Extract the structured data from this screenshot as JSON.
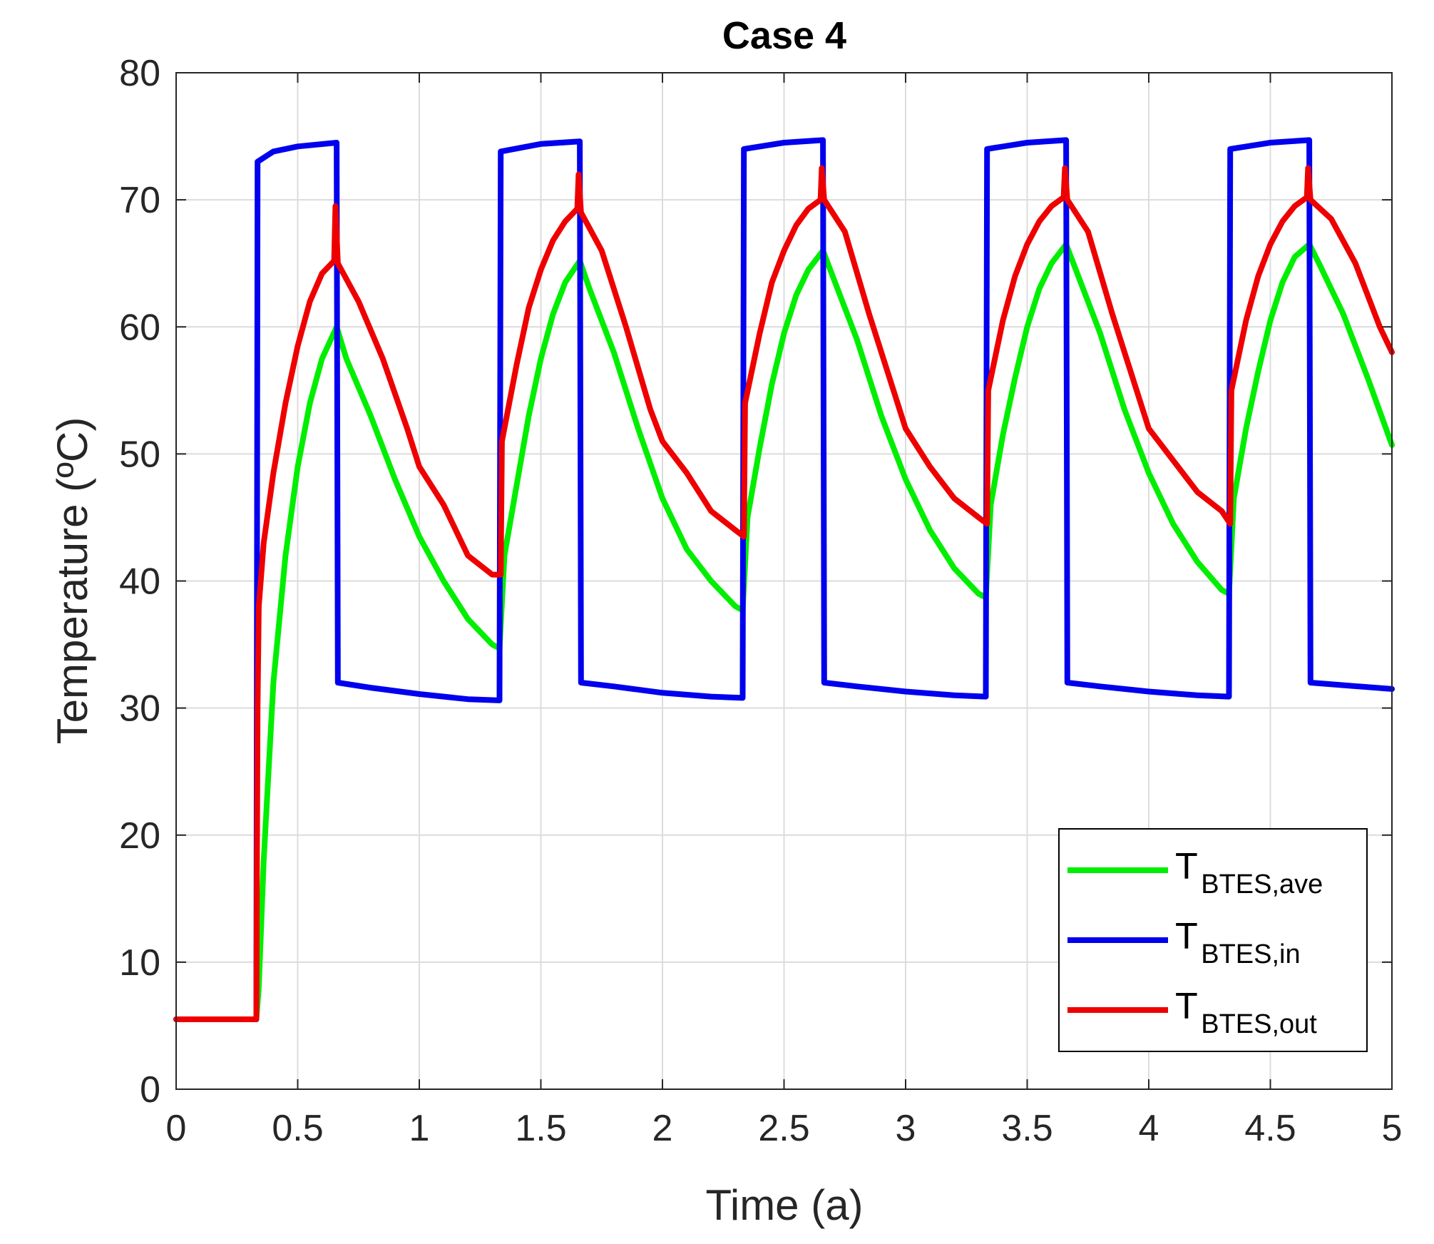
{
  "chart_data": {
    "type": "line",
    "title": "Case 4",
    "xlabel": "Time (a)",
    "ylabel": "Temperature (ºC)",
    "xlim": [
      0,
      5
    ],
    "ylim": [
      0,
      80
    ],
    "x_ticks": [
      0,
      0.5,
      1,
      1.5,
      2,
      2.5,
      3,
      3.5,
      4,
      4.5,
      5
    ],
    "x_tick_labels": [
      "0",
      "0.5",
      "1",
      "1.5",
      "2",
      "2.5",
      "3",
      "3.5",
      "4",
      "4.5",
      "5"
    ],
    "y_ticks": [
      0,
      10,
      20,
      30,
      40,
      50,
      60,
      70,
      80
    ],
    "y_tick_labels": [
      "0",
      "10",
      "20",
      "30",
      "40",
      "50",
      "60",
      "70",
      "80"
    ],
    "grid": true,
    "legend_position": "lower-right",
    "series": [
      {
        "name": "T_BTES,ave",
        "legend_main": "T",
        "legend_sub": "BTES,ave",
        "color": "#00ee00",
        "points": [
          [
            0,
            5.5
          ],
          [
            0.33,
            5.5
          ],
          [
            0.34,
            8
          ],
          [
            0.36,
            18
          ],
          [
            0.4,
            32
          ],
          [
            0.45,
            42
          ],
          [
            0.5,
            49
          ],
          [
            0.55,
            54
          ],
          [
            0.6,
            57.5
          ],
          [
            0.66,
            60
          ],
          [
            0.7,
            57.5
          ],
          [
            0.8,
            53
          ],
          [
            0.9,
            48
          ],
          [
            1.0,
            43.5
          ],
          [
            1.1,
            40
          ],
          [
            1.2,
            37
          ],
          [
            1.3,
            35
          ],
          [
            1.33,
            34.7
          ],
          [
            1.35,
            42
          ],
          [
            1.4,
            47.5
          ],
          [
            1.45,
            53
          ],
          [
            1.5,
            57.5
          ],
          [
            1.55,
            61
          ],
          [
            1.6,
            63.5
          ],
          [
            1.66,
            65.2
          ],
          [
            1.7,
            63
          ],
          [
            1.8,
            58
          ],
          [
            1.9,
            52
          ],
          [
            2.0,
            46.5
          ],
          [
            2.1,
            42.5
          ],
          [
            2.2,
            40
          ],
          [
            2.3,
            38
          ],
          [
            2.33,
            37.7
          ],
          [
            2.35,
            45
          ],
          [
            2.4,
            50.5
          ],
          [
            2.45,
            55.5
          ],
          [
            2.5,
            59.5
          ],
          [
            2.55,
            62.5
          ],
          [
            2.6,
            64.5
          ],
          [
            2.66,
            66
          ],
          [
            2.7,
            64
          ],
          [
            2.8,
            59
          ],
          [
            2.9,
            53
          ],
          [
            3.0,
            48
          ],
          [
            3.1,
            44
          ],
          [
            3.2,
            41
          ],
          [
            3.3,
            39
          ],
          [
            3.33,
            38.7
          ],
          [
            3.35,
            46
          ],
          [
            3.4,
            51.5
          ],
          [
            3.45,
            56
          ],
          [
            3.5,
            60
          ],
          [
            3.55,
            63
          ],
          [
            3.6,
            65
          ],
          [
            3.66,
            66.5
          ],
          [
            3.7,
            64.5
          ],
          [
            3.8,
            59.5
          ],
          [
            3.9,
            53.5
          ],
          [
            4.0,
            48.5
          ],
          [
            4.1,
            44.5
          ],
          [
            4.2,
            41.5
          ],
          [
            4.3,
            39.3
          ],
          [
            4.33,
            39
          ],
          [
            4.35,
            46.5
          ],
          [
            4.4,
            52
          ],
          [
            4.45,
            56.5
          ],
          [
            4.5,
            60.5
          ],
          [
            4.55,
            63.5
          ],
          [
            4.6,
            65.5
          ],
          [
            4.66,
            66.5
          ],
          [
            4.7,
            65
          ],
          [
            4.8,
            61
          ],
          [
            4.9,
            56
          ],
          [
            5.0,
            50.7
          ]
        ]
      },
      {
        "name": "T_BTES,in",
        "legend_main": "T",
        "legend_sub": "BTES,in",
        "color": "#0000ee",
        "points": [
          [
            0,
            5.5
          ],
          [
            0.33,
            5.5
          ],
          [
            0.335,
            73
          ],
          [
            0.4,
            73.8
          ],
          [
            0.5,
            74.2
          ],
          [
            0.66,
            74.5
          ],
          [
            0.665,
            32
          ],
          [
            0.8,
            31.6
          ],
          [
            1.0,
            31.1
          ],
          [
            1.2,
            30.7
          ],
          [
            1.33,
            30.6
          ],
          [
            1.335,
            73.8
          ],
          [
            1.5,
            74.4
          ],
          [
            1.66,
            74.6
          ],
          [
            1.665,
            32
          ],
          [
            1.8,
            31.7
          ],
          [
            2.0,
            31.2
          ],
          [
            2.2,
            30.9
          ],
          [
            2.33,
            30.8
          ],
          [
            2.335,
            74
          ],
          [
            2.5,
            74.5
          ],
          [
            2.66,
            74.7
          ],
          [
            2.665,
            32
          ],
          [
            2.8,
            31.7
          ],
          [
            3.0,
            31.3
          ],
          [
            3.2,
            31
          ],
          [
            3.33,
            30.9
          ],
          [
            3.335,
            74
          ],
          [
            3.5,
            74.5
          ],
          [
            3.66,
            74.7
          ],
          [
            3.665,
            32
          ],
          [
            3.8,
            31.7
          ],
          [
            4.0,
            31.3
          ],
          [
            4.2,
            31
          ],
          [
            4.33,
            30.9
          ],
          [
            4.335,
            74
          ],
          [
            4.5,
            74.5
          ],
          [
            4.66,
            74.7
          ],
          [
            4.665,
            32
          ],
          [
            4.8,
            31.8
          ],
          [
            5.0,
            31.5
          ]
        ]
      },
      {
        "name": "T_BTES,out",
        "legend_main": "T",
        "legend_sub": "BTES,out",
        "color": "#ee0000",
        "points": [
          [
            0,
            5.5
          ],
          [
            0.33,
            5.5
          ],
          [
            0.335,
            30
          ],
          [
            0.34,
            38
          ],
          [
            0.36,
            43
          ],
          [
            0.4,
            48.5
          ],
          [
            0.45,
            54
          ],
          [
            0.5,
            58.5
          ],
          [
            0.55,
            62
          ],
          [
            0.6,
            64.2
          ],
          [
            0.65,
            65.2
          ],
          [
            0.655,
            69.5
          ],
          [
            0.665,
            65
          ],
          [
            0.75,
            62
          ],
          [
            0.85,
            57.5
          ],
          [
            0.95,
            52
          ],
          [
            1.0,
            49
          ],
          [
            1.1,
            46
          ],
          [
            1.2,
            42
          ],
          [
            1.3,
            40.5
          ],
          [
            1.335,
            40.5
          ],
          [
            1.34,
            51
          ],
          [
            1.4,
            57
          ],
          [
            1.45,
            61.5
          ],
          [
            1.5,
            64.5
          ],
          [
            1.55,
            66.8
          ],
          [
            1.6,
            68.3
          ],
          [
            1.65,
            69.3
          ],
          [
            1.655,
            72
          ],
          [
            1.665,
            69
          ],
          [
            1.75,
            66
          ],
          [
            1.85,
            60
          ],
          [
            1.95,
            53.5
          ],
          [
            2.0,
            51
          ],
          [
            2.1,
            48.5
          ],
          [
            2.2,
            45.5
          ],
          [
            2.3,
            44
          ],
          [
            2.335,
            43.5
          ],
          [
            2.34,
            54
          ],
          [
            2.4,
            59.5
          ],
          [
            2.45,
            63.5
          ],
          [
            2.5,
            66
          ],
          [
            2.55,
            68
          ],
          [
            2.6,
            69.3
          ],
          [
            2.65,
            70
          ],
          [
            2.655,
            72.5
          ],
          [
            2.665,
            70
          ],
          [
            2.75,
            67.5
          ],
          [
            2.85,
            61
          ],
          [
            2.95,
            55
          ],
          [
            3.0,
            52
          ],
          [
            3.1,
            49
          ],
          [
            3.2,
            46.5
          ],
          [
            3.3,
            45
          ],
          [
            3.335,
            44.5
          ],
          [
            3.34,
            55
          ],
          [
            3.4,
            60.5
          ],
          [
            3.45,
            64
          ],
          [
            3.5,
            66.5
          ],
          [
            3.55,
            68.3
          ],
          [
            3.6,
            69.5
          ],
          [
            3.65,
            70.2
          ],
          [
            3.655,
            72.5
          ],
          [
            3.665,
            70
          ],
          [
            3.75,
            67.5
          ],
          [
            3.85,
            61
          ],
          [
            3.95,
            55
          ],
          [
            4.0,
            52
          ],
          [
            4.1,
            49.5
          ],
          [
            4.2,
            47
          ],
          [
            4.3,
            45.5
          ],
          [
            4.335,
            44.5
          ],
          [
            4.34,
            55
          ],
          [
            4.4,
            60.5
          ],
          [
            4.45,
            64
          ],
          [
            4.5,
            66.5
          ],
          [
            4.55,
            68.3
          ],
          [
            4.6,
            69.5
          ],
          [
            4.65,
            70.2
          ],
          [
            4.655,
            72.5
          ],
          [
            4.665,
            70
          ],
          [
            4.75,
            68.5
          ],
          [
            4.85,
            65
          ],
          [
            4.95,
            60
          ],
          [
            5.0,
            58
          ]
        ]
      }
    ]
  }
}
